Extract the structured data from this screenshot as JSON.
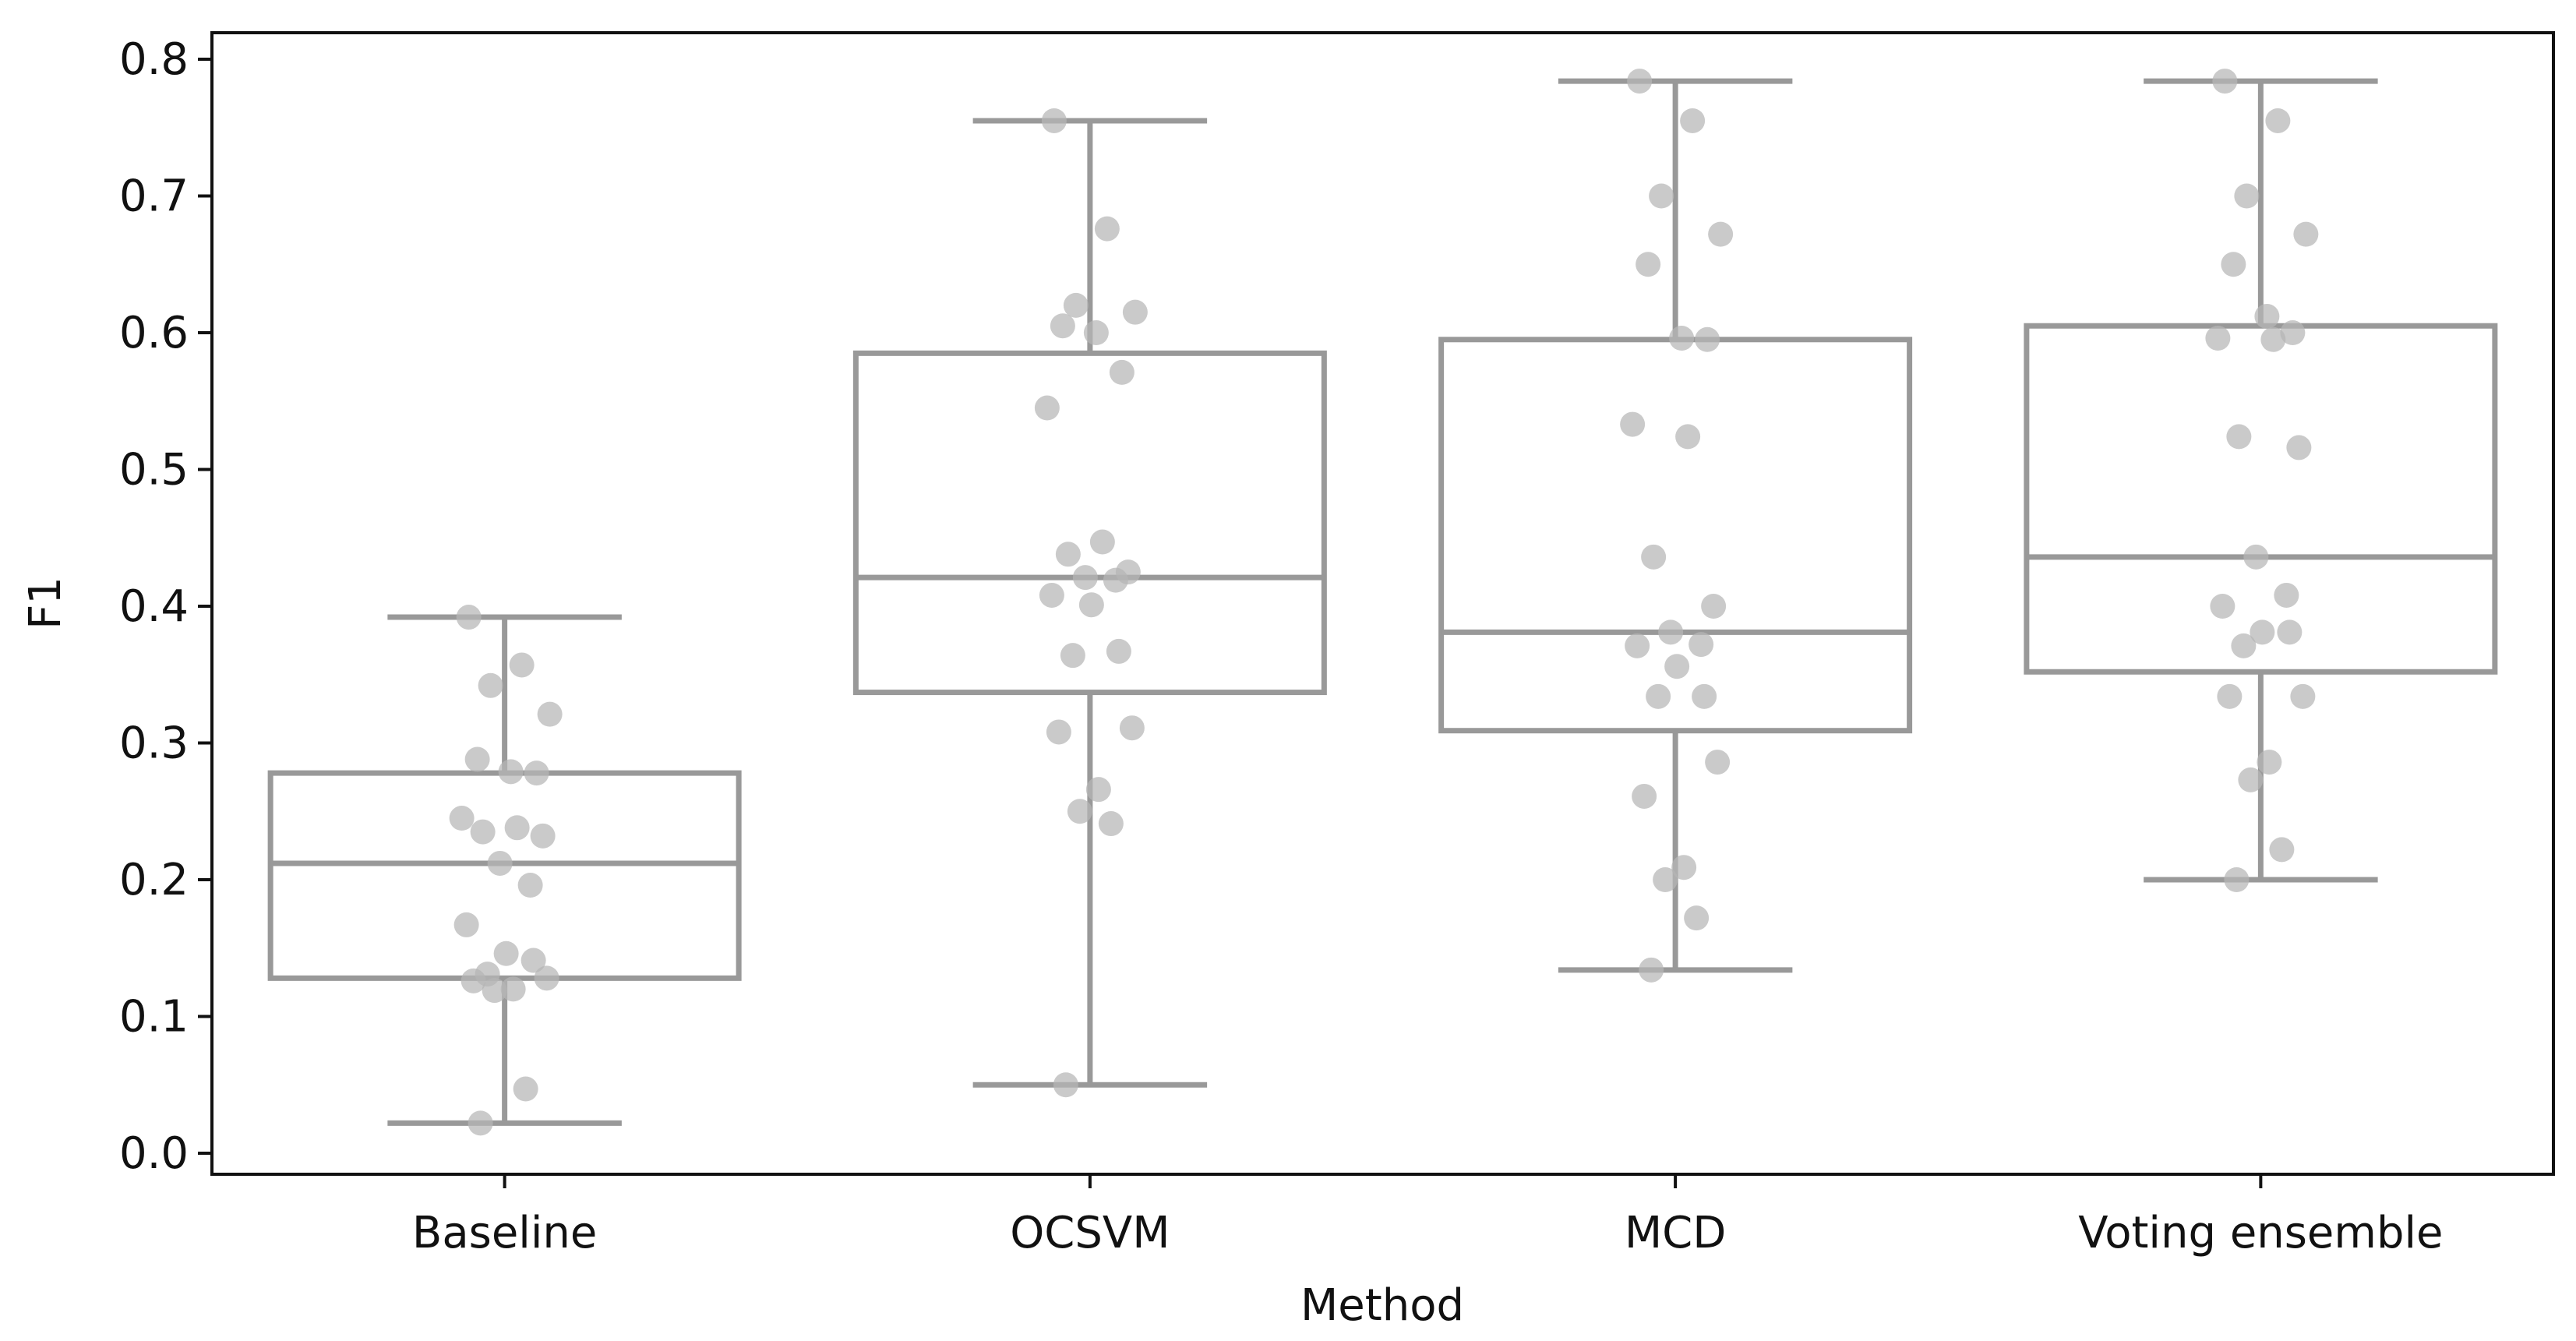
{
  "chart_data": {
    "type": "boxplot",
    "title": "",
    "xlabel": "Method",
    "ylabel": "F1",
    "ylim": [
      -0.016,
      0.82
    ],
    "yticks": [
      0.0,
      0.1,
      0.2,
      0.3,
      0.4,
      0.5,
      0.6,
      0.7,
      0.8
    ],
    "ytick_labels": [
      "0.0",
      "0.1",
      "0.2",
      "0.3",
      "0.4",
      "0.5",
      "0.6",
      "0.7",
      "0.8"
    ],
    "categories": [
      "Baseline",
      "OCSVM",
      "MCD",
      "Voting ensemble"
    ],
    "grid": false,
    "box_color": "#999999",
    "point_color": "#b5b5b5",
    "boxes": [
      {
        "name": "Baseline",
        "whisker_low": 0.022,
        "q1": 0.128,
        "median": 0.212,
        "q3": 0.278,
        "whisker_high": 0.392
      },
      {
        "name": "OCSVM",
        "whisker_low": 0.05,
        "q1": 0.337,
        "median": 0.421,
        "q3": 0.585,
        "whisker_high": 0.755
      },
      {
        "name": "MCD",
        "whisker_low": 0.134,
        "q1": 0.309,
        "median": 0.381,
        "q3": 0.595,
        "whisker_high": 0.784
      },
      {
        "name": "Voting ensemble",
        "whisker_low": 0.2,
        "q1": 0.352,
        "median": 0.436,
        "q3": 0.605,
        "whisker_high": 0.784
      }
    ],
    "points": [
      [
        0.392,
        0.357,
        0.342,
        0.321,
        0.288,
        0.279,
        0.278,
        0.245,
        0.238,
        0.235,
        0.232,
        0.212,
        0.196,
        0.167,
        0.146,
        0.141,
        0.131,
        0.128,
        0.126,
        0.12,
        0.119,
        0.047,
        0.022
      ],
      [
        0.755,
        0.676,
        0.62,
        0.615,
        0.605,
        0.6,
        0.571,
        0.545,
        0.447,
        0.438,
        0.425,
        0.421,
        0.419,
        0.408,
        0.401,
        0.367,
        0.364,
        0.311,
        0.308,
        0.266,
        0.25,
        0.241,
        0.05
      ],
      [
        0.784,
        0.755,
        0.7,
        0.672,
        0.65,
        0.596,
        0.595,
        0.533,
        0.524,
        0.436,
        0.4,
        0.381,
        0.372,
        0.371,
        0.356,
        0.334,
        0.334,
        0.286,
        0.261,
        0.209,
        0.2,
        0.172,
        0.134
      ],
      [
        0.784,
        0.755,
        0.7,
        0.672,
        0.65,
        0.612,
        0.6,
        0.596,
        0.595,
        0.524,
        0.516,
        0.436,
        0.408,
        0.4,
        0.381,
        0.381,
        0.371,
        0.334,
        0.334,
        0.286,
        0.273,
        0.222,
        0.2
      ]
    ]
  }
}
